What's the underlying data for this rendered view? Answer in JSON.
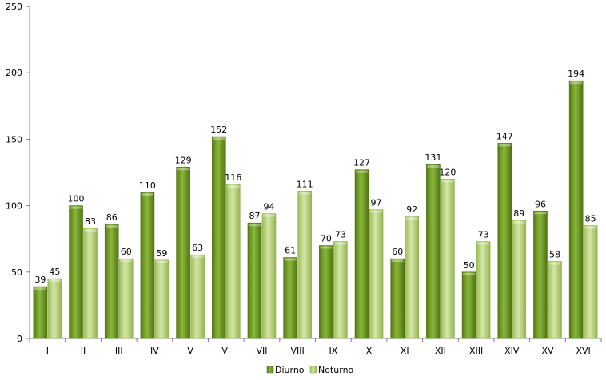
{
  "chart_data": {
    "type": "bar",
    "categories": [
      "I",
      "II",
      "III",
      "IV",
      "V",
      "VI",
      "VII",
      "VIII",
      "IX",
      "X",
      "XI",
      "XII",
      "XIII",
      "XIV",
      "XV",
      "XVI"
    ],
    "series": [
      {
        "name": "Diurno",
        "values": [
          39,
          100,
          86,
          110,
          129,
          152,
          87,
          61,
          70,
          127,
          60,
          131,
          50,
          147,
          96,
          194
        ]
      },
      {
        "name": "Noturno",
        "values": [
          45,
          83,
          60,
          59,
          63,
          116,
          94,
          111,
          73,
          97,
          92,
          120,
          73,
          89,
          58,
          85
        ]
      }
    ],
    "ylim": [
      0,
      250
    ],
    "yticks": [
      0,
      50,
      100,
      150,
      200,
      250
    ],
    "grid": false,
    "legend_position": "bottom",
    "colors": {
      "Diurno": "#6f9a24",
      "Noturno": "#b9d27c",
      "axis": "#7f7f7f"
    }
  }
}
